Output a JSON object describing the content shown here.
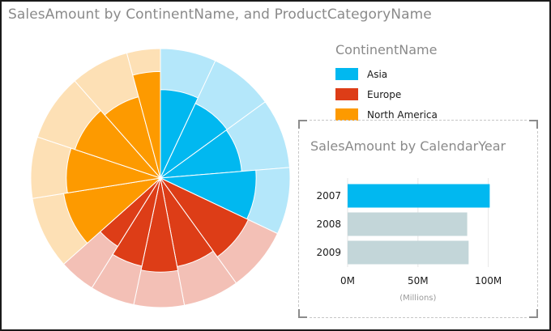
{
  "title": "SalesAmount by ContinentName, and ProductCategoryName",
  "legend": {
    "title": "ContinentName",
    "items": [
      {
        "label": "Asia",
        "color": "#01b8f0"
      },
      {
        "label": "Europe",
        "color": "#dd3d17"
      },
      {
        "label": "North America",
        "color": "#fd9a00"
      }
    ]
  },
  "bar_chart": {
    "title": "SalesAmount by CalendarYear",
    "axis_unit_label": "(Millions)",
    "x_ticks": [
      "0M",
      "50M",
      "100M"
    ],
    "highlight_color": "#01b8f0",
    "muted_color": "#c3d6d9"
  },
  "chart_data": [
    {
      "type": "pie",
      "title": "SalesAmount by ContinentName, and ProductCategoryName",
      "series": [
        {
          "name": "Asia",
          "color": "#01b8f0",
          "light_color": "#b4e7fa",
          "total": 9.2,
          "categories": [
            2.0,
            2.3,
            2.5,
            2.4
          ],
          "highlighted": [
            0.53,
            0.46,
            0.45,
            0.62
          ]
        },
        {
          "name": "Europe",
          "color": "#dd3d17",
          "light_color": "#f3c0b6",
          "total": 9.0,
          "categories": [
            2.3,
            2.0,
            1.8,
            1.6,
            1.3
          ],
          "highlighted": [
            0.64,
            0.55,
            0.6,
            0.55,
            0.44
          ]
        },
        {
          "name": "North America",
          "color": "#fd9a00",
          "light_color": "#fde0b5",
          "total": 10.5,
          "categories": [
            2.6,
            2.2,
            2.4,
            2.1,
            1.2
          ],
          "highlighted": [
            0.65,
            0.6,
            0.55,
            0.48,
            0.77
          ]
        }
      ]
    },
    {
      "type": "bar",
      "title": "SalesAmount by CalendarYear",
      "orientation": "horizontal",
      "categories": [
        "2007",
        "2008",
        "2009"
      ],
      "values": [
        101,
        85,
        86
      ],
      "highlighted_category": "2007",
      "xlabel": "(Millions)",
      "xlim": [
        0,
        110
      ],
      "x_tick_values": [
        0,
        50,
        100
      ]
    }
  ]
}
